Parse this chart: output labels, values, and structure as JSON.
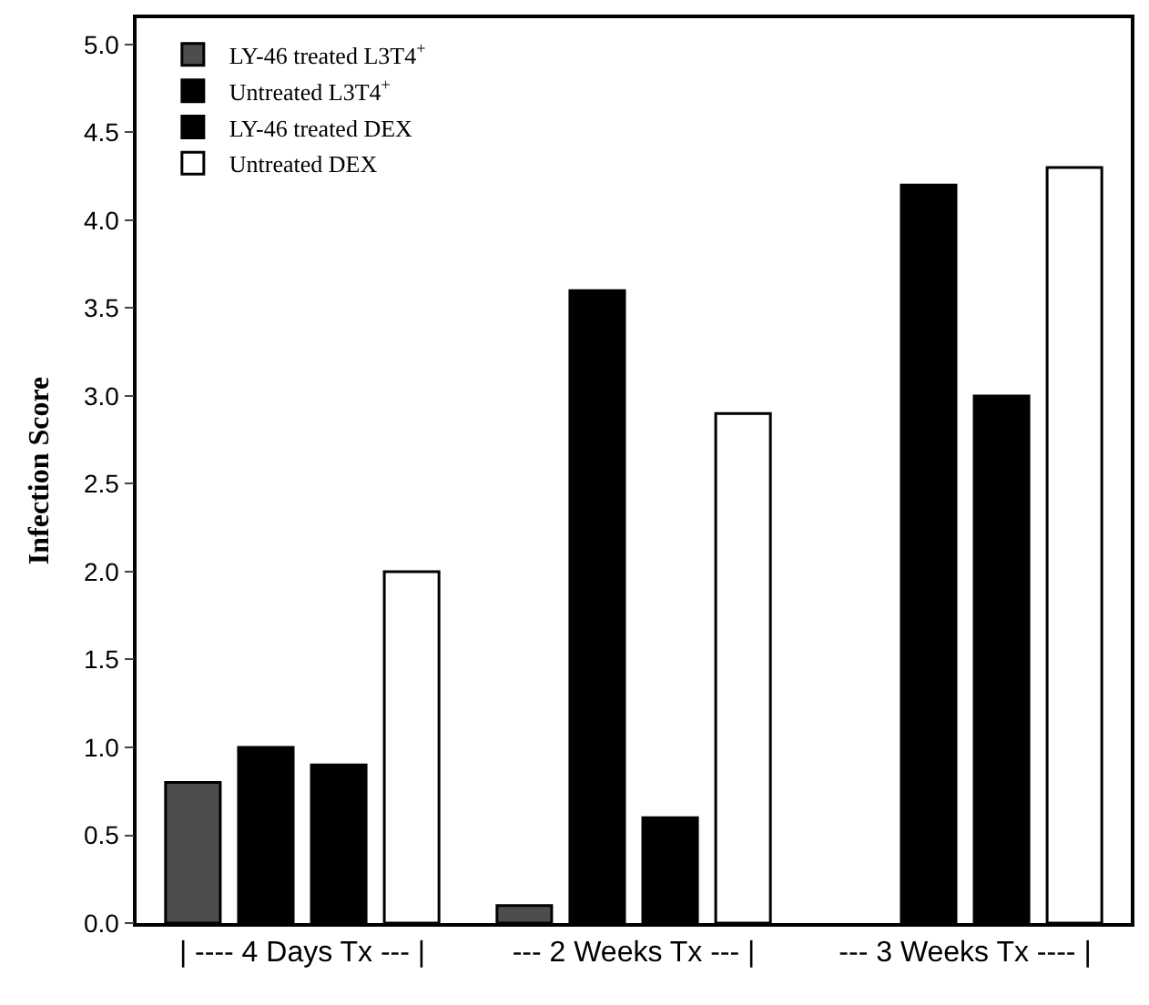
{
  "chart_data": {
    "type": "bar",
    "ylabel": "Infection Score",
    "categories": [
      "| ---- 4 Days Tx --- |",
      "--- 2 Weeks Tx --- |",
      "--- 3 Weeks Tx ---- |"
    ],
    "series": [
      {
        "name": "LY-46 treated L3T4$^{+}$",
        "color": "#4d4d4d",
        "values": [
          0.8,
          0.1,
          null
        ]
      },
      {
        "name": "Untreated L3T4$^{+}$",
        "color": "#000000",
        "values": [
          1.0,
          3.6,
          4.2
        ]
      },
      {
        "name": "LY-46 treated DEX",
        "color": "#000000",
        "values": [
          0.9,
          0.6,
          3.0
        ]
      },
      {
        "name": "Untreated DEX",
        "color": "#ffffff",
        "values": [
          2.0,
          2.9,
          4.3
        ]
      }
    ],
    "ylim": [
      0,
      5.15
    ],
    "yticks": [
      {
        "value": 0,
        "label": "0.0"
      },
      {
        "value": 0.5,
        "label": "0.5"
      },
      {
        "value": 1,
        "label": "1.0"
      },
      {
        "value": 1.5,
        "label": "1.5"
      },
      {
        "value": 2,
        "label": "2.0"
      },
      {
        "value": 2.5,
        "label": "2.5"
      },
      {
        "value": 3,
        "label": "3.0"
      },
      {
        "value": 3.5,
        "label": "3.5"
      },
      {
        "value": 4,
        "label": "4.0"
      },
      {
        "value": 4.5,
        "label": "4.5"
      },
      {
        "value": 5,
        "label": "5.0"
      }
    ],
    "legend": "top left"
  }
}
